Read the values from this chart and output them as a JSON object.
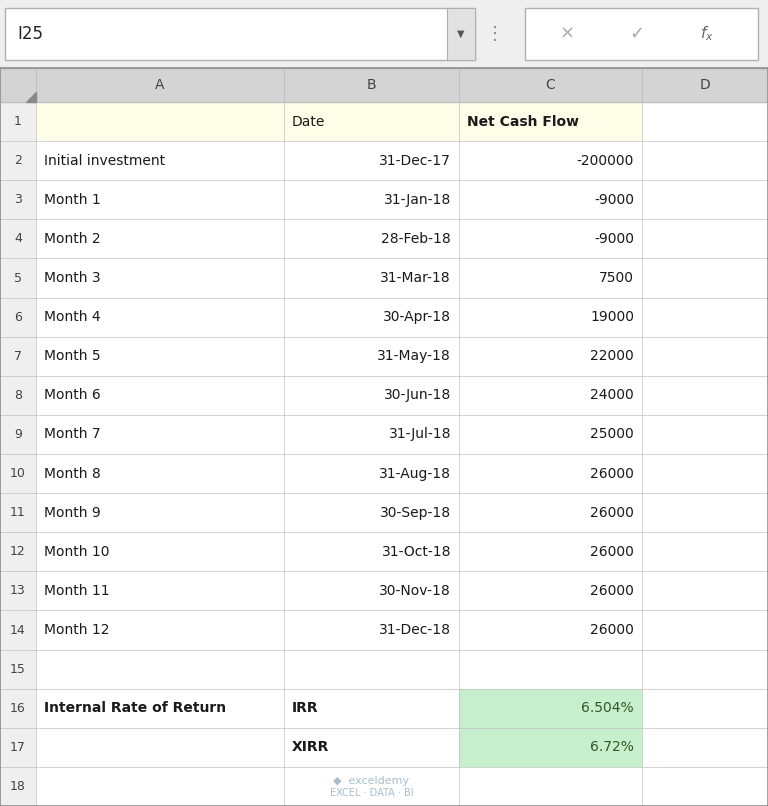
{
  "formula_bar_text": "I25",
  "rows": [
    {
      "row": 1,
      "a": "",
      "b": "Date",
      "c": "Net Cash Flow",
      "bg_a": "#fefee8",
      "bg_b": "#fefee8",
      "bg_c": "#fefee8",
      "bold_a": false,
      "bold_b": false,
      "bold_c": true,
      "align_b": "left",
      "align_c": "left"
    },
    {
      "row": 2,
      "a": "Initial investment",
      "b": "31-Dec-17",
      "c": "-200000",
      "bg_a": "#ffffff",
      "bg_b": "#ffffff",
      "bg_c": "#ffffff",
      "bold_a": false,
      "bold_b": false,
      "bold_c": false,
      "align_b": "right",
      "align_c": "right"
    },
    {
      "row": 3,
      "a": "Month 1",
      "b": "31-Jan-18",
      "c": "-9000",
      "bg_a": "#ffffff",
      "bg_b": "#ffffff",
      "bg_c": "#ffffff",
      "bold_a": false,
      "bold_b": false,
      "bold_c": false,
      "align_b": "right",
      "align_c": "right"
    },
    {
      "row": 4,
      "a": "Month 2",
      "b": "28-Feb-18",
      "c": "-9000",
      "bg_a": "#ffffff",
      "bg_b": "#ffffff",
      "bg_c": "#ffffff",
      "bold_a": false,
      "bold_b": false,
      "bold_c": false,
      "align_b": "right",
      "align_c": "right"
    },
    {
      "row": 5,
      "a": "Month 3",
      "b": "31-Mar-18",
      "c": "7500",
      "bg_a": "#ffffff",
      "bg_b": "#ffffff",
      "bg_c": "#ffffff",
      "bold_a": false,
      "bold_b": false,
      "bold_c": false,
      "align_b": "right",
      "align_c": "right"
    },
    {
      "row": 6,
      "a": "Month 4",
      "b": "30-Apr-18",
      "c": "19000",
      "bg_a": "#ffffff",
      "bg_b": "#ffffff",
      "bg_c": "#ffffff",
      "bold_a": false,
      "bold_b": false,
      "bold_c": false,
      "align_b": "right",
      "align_c": "right"
    },
    {
      "row": 7,
      "a": "Month 5",
      "b": "31-May-18",
      "c": "22000",
      "bg_a": "#ffffff",
      "bg_b": "#ffffff",
      "bg_c": "#ffffff",
      "bold_a": false,
      "bold_b": false,
      "bold_c": false,
      "align_b": "right",
      "align_c": "right"
    },
    {
      "row": 8,
      "a": "Month 6",
      "b": "30-Jun-18",
      "c": "24000",
      "bg_a": "#ffffff",
      "bg_b": "#ffffff",
      "bg_c": "#ffffff",
      "bold_a": false,
      "bold_b": false,
      "bold_c": false,
      "align_b": "right",
      "align_c": "right"
    },
    {
      "row": 9,
      "a": "Month 7",
      "b": "31-Jul-18",
      "c": "25000",
      "bg_a": "#ffffff",
      "bg_b": "#ffffff",
      "bg_c": "#ffffff",
      "bold_a": false,
      "bold_b": false,
      "bold_c": false,
      "align_b": "right",
      "align_c": "right"
    },
    {
      "row": 10,
      "a": "Month 8",
      "b": "31-Aug-18",
      "c": "26000",
      "bg_a": "#ffffff",
      "bg_b": "#ffffff",
      "bg_c": "#ffffff",
      "bold_a": false,
      "bold_b": false,
      "bold_c": false,
      "align_b": "right",
      "align_c": "right"
    },
    {
      "row": 11,
      "a": "Month 9",
      "b": "30-Sep-18",
      "c": "26000",
      "bg_a": "#ffffff",
      "bg_b": "#ffffff",
      "bg_c": "#ffffff",
      "bold_a": false,
      "bold_b": false,
      "bold_c": false,
      "align_b": "right",
      "align_c": "right"
    },
    {
      "row": 12,
      "a": "Month 10",
      "b": "31-Oct-18",
      "c": "26000",
      "bg_a": "#ffffff",
      "bg_b": "#ffffff",
      "bg_c": "#ffffff",
      "bold_a": false,
      "bold_b": false,
      "bold_c": false,
      "align_b": "right",
      "align_c": "right"
    },
    {
      "row": 13,
      "a": "Month 11",
      "b": "30-Nov-18",
      "c": "26000",
      "bg_a": "#ffffff",
      "bg_b": "#ffffff",
      "bg_c": "#ffffff",
      "bold_a": false,
      "bold_b": false,
      "bold_c": false,
      "align_b": "right",
      "align_c": "right"
    },
    {
      "row": 14,
      "a": "Month 12",
      "b": "31-Dec-18",
      "c": "26000",
      "bg_a": "#ffffff",
      "bg_b": "#ffffff",
      "bg_c": "#ffffff",
      "bold_a": false,
      "bold_b": false,
      "bold_c": false,
      "align_b": "right",
      "align_c": "right"
    },
    {
      "row": 15,
      "a": "",
      "b": "",
      "c": "",
      "bg_a": "#ffffff",
      "bg_b": "#ffffff",
      "bg_c": "#ffffff",
      "bold_a": false,
      "bold_b": false,
      "bold_c": false,
      "align_b": "right",
      "align_c": "right"
    },
    {
      "row": 16,
      "a": "Internal Rate of Return",
      "b": "IRR",
      "c": "6.504%",
      "bg_a": "#ffffff",
      "bg_b": "#ffffff",
      "bg_c": "#c6efce",
      "bold_a": true,
      "bold_b": true,
      "bold_c": false,
      "align_b": "left",
      "align_c": "right"
    },
    {
      "row": 17,
      "a": "",
      "b": "XIRR",
      "c": "6.72%",
      "bg_a": "#ffffff",
      "bg_b": "#ffffff",
      "bg_c": "#c6efce",
      "bold_a": false,
      "bold_b": true,
      "bold_c": false,
      "align_b": "left",
      "align_c": "right"
    },
    {
      "row": 18,
      "a": "",
      "b": "",
      "c": "",
      "bg_a": "#ffffff",
      "bg_b": "#ffffff",
      "bg_c": "#ffffff",
      "bold_a": false,
      "bold_b": false,
      "bold_c": false,
      "align_b": "right",
      "align_c": "right"
    }
  ],
  "header_bg": "#d4d4d4",
  "row_num_bg": "#efefef",
  "grid_color": "#c0c0c0",
  "top_bar_bg": "#efefef",
  "watermark_color": "#a8bfce",
  "irr_color": "#375623"
}
